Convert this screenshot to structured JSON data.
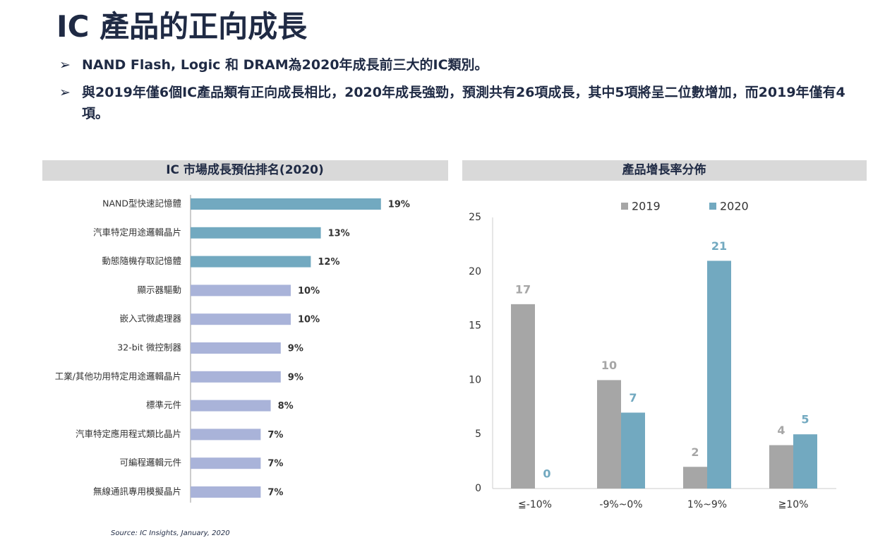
{
  "title": "IC 產品的正向成長",
  "bullets": [
    "NAND Flash, Logic 和 DRAM為2020年成長前三大的IC類別。",
    "與2019年僅6個IC產品類有正向成長相比，2020年成長強勁，預測共有26項成長，其中5項將呈二位數增加，而2019年僅有4項。"
  ],
  "source": "Source: IC Insights, January, 2020",
  "chart_data": [
    {
      "type": "hbar",
      "title": "IC 市場成長預估排名(2020)",
      "categories": [
        "NAND型快速記憶體",
        "汽車特定用途邏輯晶片",
        "動態隨機存取記憶體",
        "顯示器驅動",
        "嵌入式微處理器",
        "32-bit 微控制器",
        "工業/其他功用特定用途邏輯晶片",
        "標準元件",
        "汽車特定應用程式類比晶片",
        "可編程邏輯元件",
        "無線通訊專用模擬晶片"
      ],
      "values": [
        19,
        13,
        12,
        10,
        10,
        9,
        9,
        8,
        7,
        7,
        7
      ],
      "value_labels": [
        "19%",
        "13%",
        "12%",
        "10%",
        "10%",
        "9%",
        "9%",
        "8%",
        "7%",
        "7%",
        "7%"
      ],
      "colors": [
        "#72a9c0",
        "#72a9c0",
        "#72a9c0",
        "#a9b3d9",
        "#a9b3d9",
        "#a9b3d9",
        "#a9b3d9",
        "#a9b3d9",
        "#a9b3d9",
        "#a9b3d9",
        "#a9b3d9"
      ]
    },
    {
      "type": "grouped-bar",
      "title": "產品增長率分佈",
      "categories": [
        "≦-10%",
        "-9%~0%",
        "1%~9%",
        "≧10%"
      ],
      "series": [
        {
          "name": "2019",
          "color": "#a6a6a6",
          "values": [
            17,
            10,
            2,
            4
          ]
        },
        {
          "name": "2020",
          "color": "#72a9c0",
          "values": [
            0,
            7,
            21,
            5
          ]
        }
      ],
      "ylim": [
        0,
        25
      ],
      "yticks": [
        0,
        5,
        10,
        15,
        20,
        25
      ],
      "grid": false,
      "legend": "top"
    }
  ]
}
